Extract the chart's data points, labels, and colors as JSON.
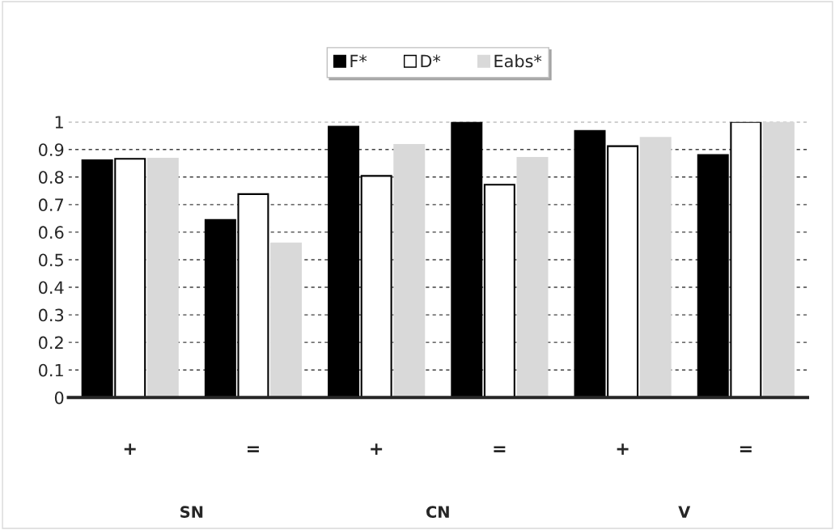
{
  "chart_data": {
    "type": "bar",
    "categories": [
      "+",
      "=",
      "+",
      "=",
      "+",
      "="
    ],
    "series": [
      {
        "name": "F*",
        "color": "#000000",
        "values": [
          0.861,
          0.644,
          0.983,
          1.0,
          0.967,
          0.88
        ]
      },
      {
        "name": "D*",
        "color": "#ffffff",
        "values": [
          0.866,
          0.738,
          0.804,
          0.772,
          0.912,
          1.0
        ]
      },
      {
        "name": "Eabs*",
        "color": "#d9d9d9",
        "values": [
          0.867,
          0.559,
          0.917,
          0.87,
          0.942,
          1.0
        ]
      }
    ],
    "ylim": [
      0,
      1
    ],
    "yticks": [
      0,
      0.1,
      0.2,
      0.3,
      0.4,
      0.5,
      0.6,
      0.7,
      0.8,
      0.9,
      1
    ],
    "grid": "y",
    "legend": "top",
    "annotations": [
      "SN",
      "CN",
      "V"
    ]
  }
}
